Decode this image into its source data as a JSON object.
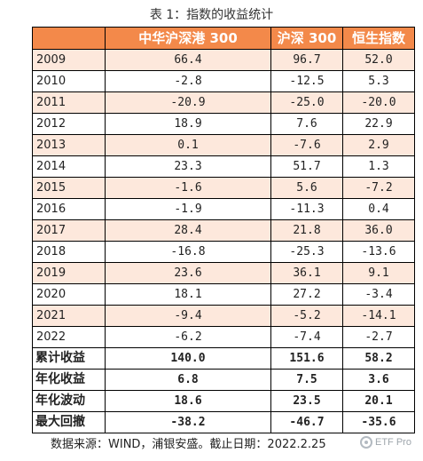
{
  "title": "表 1：指数的收益统计",
  "table": {
    "columns": [
      "",
      "中华沪深港 300",
      "沪深 300",
      "恒生指数"
    ],
    "years": [
      {
        "label": "2009",
        "v": [
          "66.4",
          "96.7",
          "52.0"
        ]
      },
      {
        "label": "2010",
        "v": [
          "-2.8",
          "-12.5",
          "5.3"
        ]
      },
      {
        "label": "2011",
        "v": [
          "-20.9",
          "-25.0",
          "-20.0"
        ]
      },
      {
        "label": "2012",
        "v": [
          "18.9",
          "7.6",
          "22.9"
        ]
      },
      {
        "label": "2013",
        "v": [
          "0.1",
          "-7.6",
          "2.9"
        ]
      },
      {
        "label": "2014",
        "v": [
          "23.3",
          "51.7",
          "1.3"
        ]
      },
      {
        "label": "2015",
        "v": [
          "-1.6",
          "5.6",
          "-7.2"
        ]
      },
      {
        "label": "2016",
        "v": [
          "-1.9",
          "-11.3",
          "0.4"
        ]
      },
      {
        "label": "2017",
        "v": [
          "28.4",
          "21.8",
          "36.0"
        ]
      },
      {
        "label": "2018",
        "v": [
          "-16.8",
          "-25.3",
          "-13.6"
        ]
      },
      {
        "label": "2019",
        "v": [
          "23.6",
          "36.1",
          "9.1"
        ]
      },
      {
        "label": "2020",
        "v": [
          "18.1",
          "27.2",
          "-3.4"
        ]
      },
      {
        "label": "2021",
        "v": [
          "-9.4",
          "-5.2",
          "-14.1"
        ]
      },
      {
        "label": "2022",
        "v": [
          "-6.2",
          "-7.4",
          "-2.7"
        ]
      }
    ],
    "summary": [
      {
        "label": "累计收益",
        "v": [
          "140.0",
          "151.6",
          "58.2"
        ]
      },
      {
        "label": "年化收益",
        "v": [
          "6.8",
          "7.5",
          "3.6"
        ]
      },
      {
        "label": "年化波动",
        "v": [
          "18.6",
          "23.5",
          "20.1"
        ]
      },
      {
        "label": "最大回撤",
        "v": [
          "-38.2",
          "-46.7",
          "-35.6"
        ]
      }
    ]
  },
  "source": "数据来源：WIND，浦银安盛。截止日期：2022.2.25",
  "watermark": "ETF Pro",
  "colors": {
    "header_bg": "#f3894a",
    "shaded_row_bg": "#fde8dc"
  }
}
